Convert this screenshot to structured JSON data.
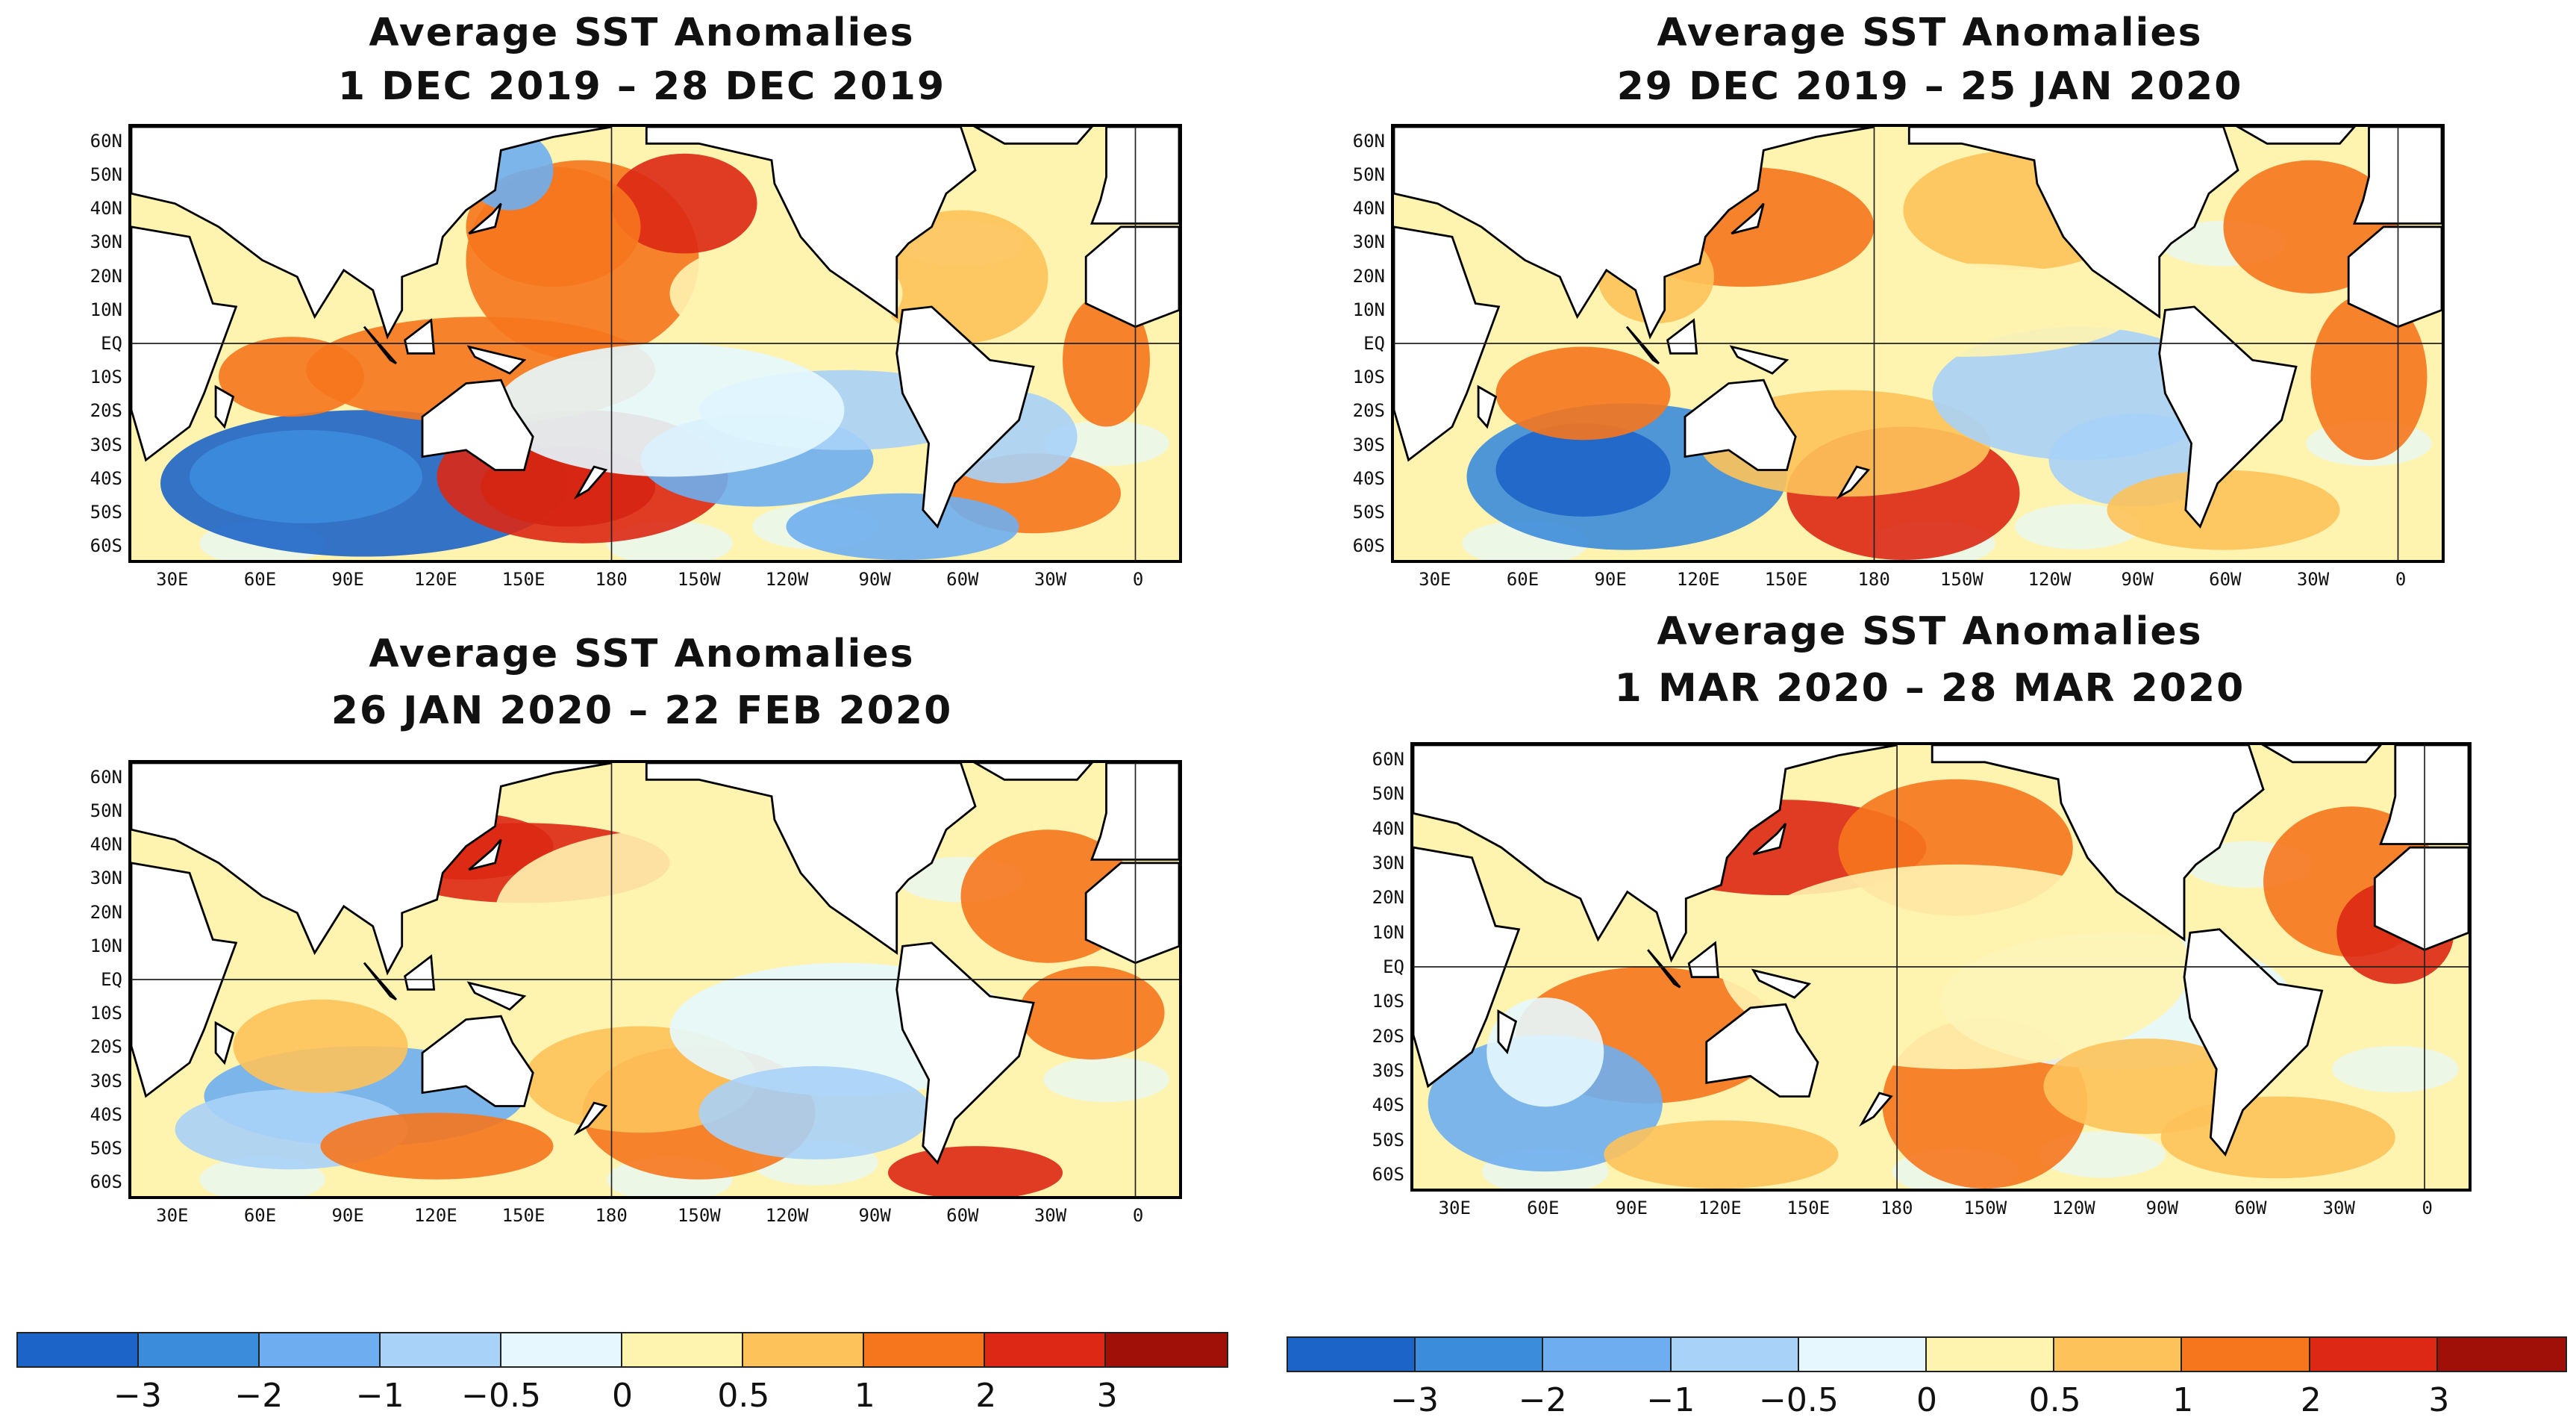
{
  "panels": [
    {
      "title_line1": "Average SST Anomalies",
      "title_line2": "1 DEC 2019 – 28 DEC 2019"
    },
    {
      "title_line1": "Average SST Anomalies",
      "title_line2": "29 DEC 2019 – 25 JAN 2020"
    },
    {
      "title_line1": "Average SST Anomalies",
      "title_line2": "26 JAN 2020 – 22 FEB 2020"
    },
    {
      "title_line1": "Average SST Anomalies",
      "title_line2": "1 MAR 2020 – 28 MAR 2020"
    }
  ],
  "lat_labels": [
    "60N",
    "50N",
    "40N",
    "30N",
    "20N",
    "10N",
    "EQ",
    "10S",
    "20S",
    "30S",
    "40S",
    "50S",
    "60S"
  ],
  "lon_labels": [
    "30E",
    "60E",
    "90E",
    "120E",
    "150E",
    "180",
    "150W",
    "120W",
    "90W",
    "60W",
    "30W",
    "0"
  ],
  "colorbar": {
    "ticks": [
      "−3",
      "−2",
      "−1",
      "−0.5",
      "0",
      "0.5",
      "1",
      "2",
      "3"
    ],
    "colors": [
      "#1d64c8",
      "#3c8cdc",
      "#6eaef0",
      "#a8d2f8",
      "#e6f8fe",
      "#fff3b0",
      "#fdc25a",
      "#f6761e",
      "#dc2814",
      "#a01008"
    ]
  },
  "colors": {
    "land": "#ffffff",
    "coast": "#000000",
    "gridline": "#222222"
  }
}
